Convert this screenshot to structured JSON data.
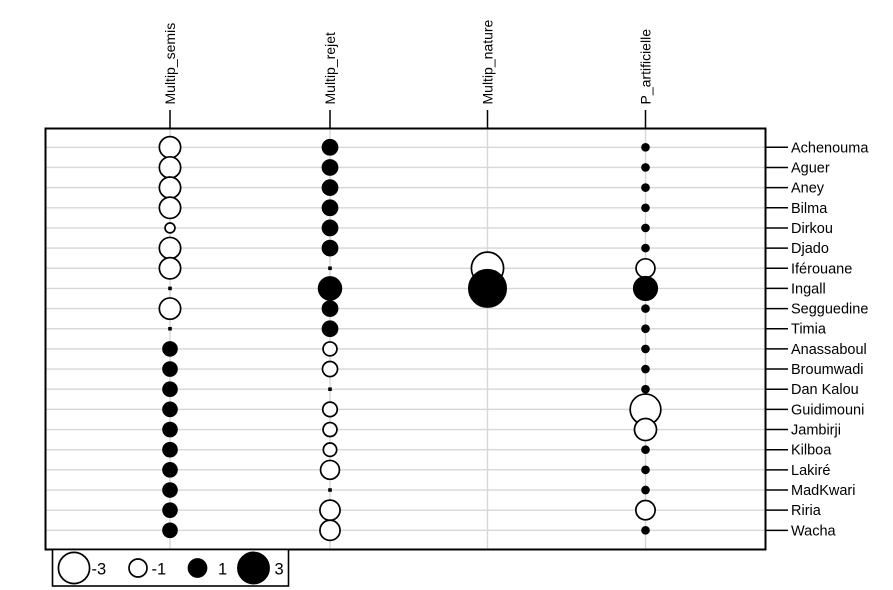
{
  "chart_data": {
    "type": "heatmap",
    "variant": "balloon-plot (table.value style: circle size encodes |value|, fill encodes sign)",
    "title": "",
    "columns": [
      "Multip_semis",
      "Multip_rejet",
      "Multip_nature",
      "P_artificielle"
    ],
    "rows": [
      "Achenouma",
      "Aguer",
      "Aney",
      "Bilma",
      "Dirkou",
      "Djado",
      "Iférouane",
      "Ingall",
      "Segguedine",
      "Timia",
      "Anassaboul",
      "Broumwadi",
      "Dan Kalou",
      "Guidimouni",
      "Jambirji",
      "Kilboa",
      "Lakiré",
      "MadKwari",
      "Riria",
      "Wacha"
    ],
    "values": [
      [
        -1.4,
        0.7,
        0,
        0.15
      ],
      [
        -1.4,
        0.7,
        0,
        0.15
      ],
      [
        -1.4,
        0.7,
        0,
        0.15
      ],
      [
        -1.4,
        0.7,
        0,
        0.15
      ],
      [
        -0.3,
        0.7,
        0,
        0.15
      ],
      [
        -1.4,
        0.7,
        0,
        0.15
      ],
      [
        -1.4,
        0.05,
        -3.2,
        -1.1
      ],
      [
        0.05,
        1.6,
        4.3,
        1.7
      ],
      [
        -1.4,
        0.7,
        0,
        0.15
      ],
      [
        0.05,
        0.7,
        0,
        0.15
      ],
      [
        0.6,
        -0.6,
        0,
        0.15
      ],
      [
        0.6,
        -0.7,
        0,
        0.15
      ],
      [
        0.6,
        0.05,
        0,
        0.15
      ],
      [
        0.6,
        -0.65,
        0,
        -2.9
      ],
      [
        0.6,
        -0.6,
        0,
        -1.5
      ],
      [
        0.6,
        -0.55,
        0,
        0.15
      ],
      [
        0.6,
        -1.1,
        0,
        0.15
      ],
      [
        0.6,
        0.05,
        0,
        0.15
      ],
      [
        0.6,
        -1.25,
        0,
        -1.15
      ],
      [
        0.6,
        -1.25,
        0,
        0.15
      ]
    ],
    "encoding": "circle area proportional to |value|; black filled = positive, white open = negative; tiny black square = value near 0; empty cell = 0",
    "legend": {
      "position": "bottom-left",
      "items": [
        {
          "label": "-3",
          "value": -3
        },
        {
          "label": "-1",
          "value": -1
        },
        {
          "label": "1",
          "value": 1
        },
        {
          "label": "3",
          "value": 3
        }
      ]
    },
    "grid": "on",
    "colors": {
      "positive_fill": "#000000",
      "negative_fill": "#ffffff",
      "stroke": "#000000",
      "grid": "#d7d7d7",
      "border": "#000000",
      "text": "#000000"
    }
  }
}
